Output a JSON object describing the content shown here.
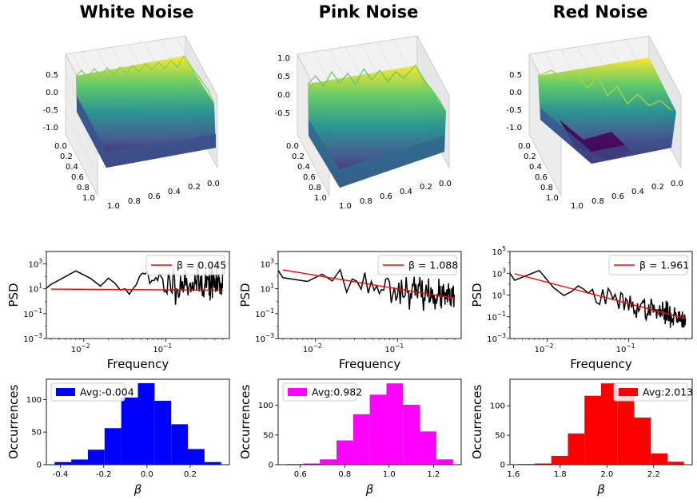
{
  "chart_data": [
    {
      "type": "surface3d",
      "title": "White Noise",
      "z_ticks": [
        "0.5",
        "0.0",
        "-0.5",
        "-1.0"
      ],
      "x_ticks": [
        "0.0",
        "0.2",
        "0.4",
        "0.6",
        "0.8",
        "1.0"
      ],
      "y_ticks": [
        "1.0",
        "0.8",
        "0.6",
        "0.4",
        "0.2",
        "0.0"
      ],
      "colormap": "viridis"
    },
    {
      "type": "surface3d",
      "title": "Pink Noise",
      "z_ticks": [
        "1.0",
        "0.5",
        "0.0",
        "-0.5"
      ],
      "x_ticks": [
        "0.0",
        "0.2",
        "0.4",
        "0.6",
        "0.8",
        "1.0"
      ],
      "y_ticks": [
        "1.0",
        "0.8",
        "0.6",
        "0.4",
        "0.2",
        "0.0"
      ],
      "colormap": "viridis"
    },
    {
      "type": "surface3d",
      "title": "Red Noise",
      "z_ticks": [
        "0.5",
        "0.0",
        "-0.5",
        "-1.0"
      ],
      "x_ticks": [
        "0.0",
        "0.2",
        "0.4",
        "0.6",
        "0.8",
        "1.0"
      ],
      "y_ticks": [
        "1.0",
        "0.8",
        "0.6",
        "0.4",
        "0.2",
        "0.0"
      ],
      "colormap": "viridis"
    },
    {
      "type": "line",
      "xscale": "log",
      "yscale": "log",
      "xlabel": "Frequency",
      "ylabel": "PSD",
      "xlim": [
        0.0035,
        0.6
      ],
      "ylim": [
        0.001,
        10000
      ],
      "x_ticks": [
        {
          "v": 0.01,
          "mant": "10",
          "exp": "−2"
        },
        {
          "v": 0.1,
          "mant": "10",
          "exp": "−1"
        }
      ],
      "y_ticks": [
        {
          "v": 0.001,
          "mant": "10",
          "exp": "−3"
        },
        {
          "v": 0.1,
          "mant": "10",
          "exp": "−1"
        },
        {
          "v": 10,
          "mant": "10",
          "exp": "1"
        },
        {
          "v": 1000,
          "mant": "10",
          "exp": "3"
        }
      ],
      "legend": {
        "label": "β = 0.045",
        "location": "upper right"
      },
      "fit": {
        "beta": 0.045,
        "y_at_xmin": 9.5,
        "color": "#ff0000"
      },
      "series_color": "#000000",
      "psd_log10_amplitude": 1.55,
      "psd_noise_sd": 0.7,
      "seed": 11
    },
    {
      "type": "line",
      "xscale": "log",
      "yscale": "log",
      "xlabel": "Frequency",
      "ylabel": "PSD",
      "xlim": [
        0.0035,
        0.6
      ],
      "ylim": [
        0.001,
        10000
      ],
      "x_ticks": [
        {
          "v": 0.01,
          "mant": "10",
          "exp": "−2"
        },
        {
          "v": 0.1,
          "mant": "10",
          "exp": "−1"
        }
      ],
      "y_ticks": [
        {
          "v": 0.001,
          "mant": "10",
          "exp": "−3"
        },
        {
          "v": 0.1,
          "mant": "10",
          "exp": "−1"
        },
        {
          "v": 10,
          "mant": "10",
          "exp": "1"
        },
        {
          "v": 1000,
          "mant": "10",
          "exp": "3"
        }
      ],
      "legend": {
        "label": "β = 1.088",
        "location": "upper right"
      },
      "fit": {
        "beta": 1.088,
        "y_at_xmin": 330,
        "color": "#ff0000"
      },
      "series_color": "#000000",
      "psd_log10_amplitude": 2.5,
      "psd_noise_sd": 0.55,
      "seed": 23
    },
    {
      "type": "line",
      "xscale": "log",
      "yscale": "log",
      "xlabel": "Frequency",
      "ylabel": "PSD",
      "xlim": [
        0.0035,
        0.6
      ],
      "ylim": [
        0.001,
        100000
      ],
      "x_ticks": [
        {
          "v": 0.01,
          "mant": "10",
          "exp": "−2"
        },
        {
          "v": 0.1,
          "mant": "10",
          "exp": "−1"
        }
      ],
      "y_ticks": [
        {
          "v": 0.001,
          "mant": "10",
          "exp": "−3"
        },
        {
          "v": 0.1,
          "mant": "10",
          "exp": "−1"
        },
        {
          "v": 10,
          "mant": "10",
          "exp": "1"
        },
        {
          "v": 1000,
          "mant": "10",
          "exp": "3"
        },
        {
          "v": 100000,
          "mant": "10",
          "exp": "5"
        }
      ],
      "legend": {
        "label": "β = 1.961",
        "location": "upper right"
      },
      "fit": {
        "beta": 1.961,
        "y_at_xmin": 900,
        "color": "#ff0000"
      },
      "series_color": "#000000",
      "psd_log10_amplitude": 2.9,
      "psd_noise_sd": 0.5,
      "seed": 37
    },
    {
      "type": "bar",
      "subtype": "histogram",
      "xlabel": "β",
      "ylabel": "Occurrences",
      "color": "#0000ff",
      "bin_edges": [
        -0.427,
        -0.35,
        -0.273,
        -0.196,
        -0.119,
        -0.042,
        0.035,
        0.112,
        0.189,
        0.266,
        0.343
      ],
      "values": [
        4,
        8,
        23,
        56,
        103,
        125,
        98,
        62,
        24,
        4
      ],
      "xlim": [
        -0.465,
        0.381
      ],
      "ylim": [
        0,
        131
      ],
      "x_ticks": [
        "-0.4",
        "-0.2",
        "0.0",
        "0.2"
      ],
      "x_tick_values": [
        -0.4,
        -0.2,
        0.0,
        0.2
      ],
      "y_ticks": [
        0,
        50,
        100
      ],
      "legend": {
        "label": "Avg:-0.004",
        "location": "upper left"
      }
    },
    {
      "type": "bar",
      "subtype": "histogram",
      "xlabel": "β",
      "ylabel": "Occurrences",
      "color": "#ff00ff",
      "bin_edges": [
        0.538,
        0.613,
        0.688,
        0.763,
        0.838,
        0.913,
        0.988,
        1.063,
        1.138,
        1.213,
        1.288
      ],
      "values": [
        1,
        2,
        9,
        41,
        85,
        118,
        137,
        101,
        56,
        9
      ],
      "xlim": [
        0.5,
        1.325
      ],
      "ylim": [
        0,
        144
      ],
      "x_ticks": [
        "0.6",
        "0.8",
        "1.0",
        "1.2"
      ],
      "x_tick_values": [
        0.6,
        0.8,
        1.0,
        1.2
      ],
      "y_ticks": [
        0,
        50,
        100
      ],
      "legend": {
        "label": "Avg:0.982",
        "location": "upper left"
      }
    },
    {
      "type": "bar",
      "subtype": "histogram",
      "xlabel": "β",
      "ylabel": "Occurrences",
      "color": "#ff0000",
      "bin_edges": [
        1.62,
        1.691,
        1.762,
        1.833,
        1.904,
        1.975,
        2.046,
        2.117,
        2.188,
        2.259,
        2.33
      ],
      "values": [
        1,
        2,
        15,
        53,
        117,
        138,
        123,
        80,
        19,
        5
      ],
      "xlim": [
        1.585,
        2.365
      ],
      "ylim": [
        0,
        145
      ],
      "x_ticks": [
        "1.6",
        "1.8",
        "2.0",
        "2.2"
      ],
      "x_tick_values": [
        1.6,
        1.8,
        2.0,
        2.2
      ],
      "y_ticks": [
        0,
        50,
        100
      ],
      "legend": {
        "label": "Avg:2.013",
        "location": "upper right"
      }
    }
  ]
}
